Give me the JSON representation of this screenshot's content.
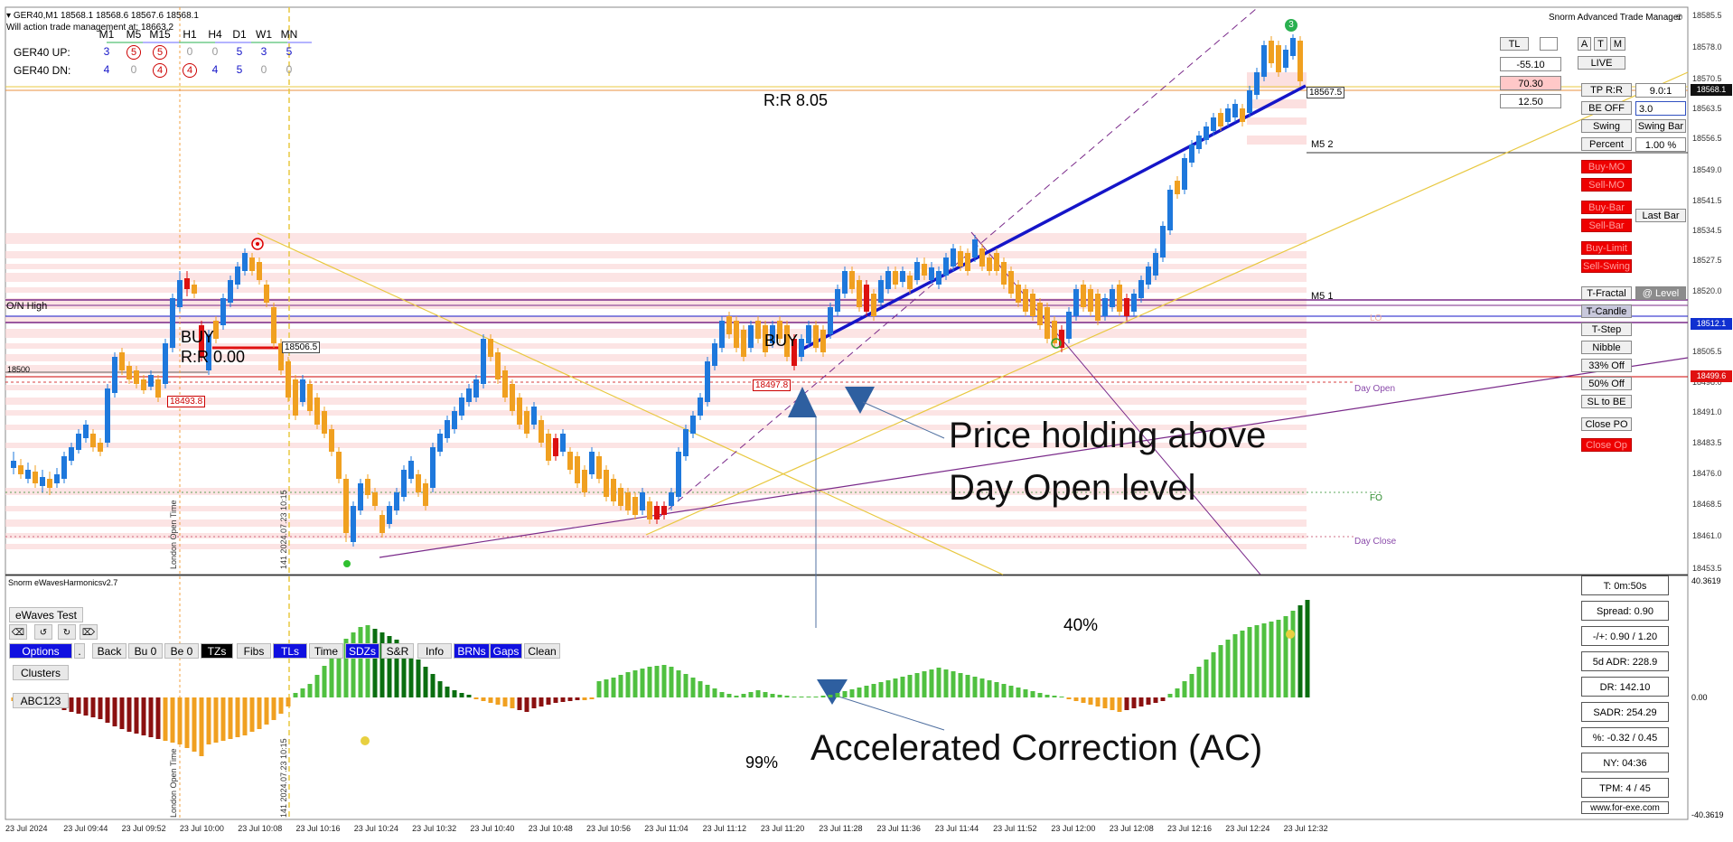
{
  "header": {
    "symbol_line": "GER40,M1  18568.1  18568.6  18567.6  18568.1",
    "note": "Will action trade management at: 18663.2"
  },
  "mtf": {
    "timeframes": [
      "M1",
      "M5",
      "M15",
      "H1",
      "H4",
      "D1",
      "W1",
      "MN"
    ],
    "up_label": "GER40 UP:",
    "dn_label": "GER40 DN:",
    "up_values": [
      "3",
      "5",
      "5",
      "0",
      "0",
      "5",
      "3",
      "5"
    ],
    "dn_values": [
      "4",
      "0",
      "4",
      "4",
      "4",
      "5",
      "0",
      "0"
    ],
    "up_circled": [
      false,
      true,
      true,
      false,
      false,
      false,
      false,
      false
    ],
    "dn_circled": [
      false,
      false,
      true,
      true,
      false,
      false,
      false,
      false
    ]
  },
  "trade_manager": {
    "title": "Snorm Advanced Trade Manager",
    "buttons": {
      "tl": "TL",
      "a": "A",
      "t": "T",
      "m": "M",
      "live": "LIVE",
      "tp_rr": "TP R:R",
      "tp_rr_value": "9.0:1",
      "be_off": "BE OFF",
      "be_value": "3.0",
      "swing": "Swing",
      "swing_bar": "Swing Bar",
      "percent": "Percent",
      "percent_value": "1.00 %",
      "buy_mo": "Buy-MO",
      "sell_mo": "Sell-MO",
      "buy_bar": "Buy-Bar",
      "sell_bar": "Sell-Bar",
      "last_bar": "Last Bar",
      "buy_limit": "Buy-Limit",
      "sell_swing": "Sell-Swing",
      "t_fractal": "T-Fractal",
      "at_level": "@ Level",
      "t_candle": "T-Candle",
      "t_step": "T-Step",
      "nibble": "Nibble",
      "off33": "33% Off",
      "off50": "50% Off",
      "sl_to_be": "SL to BE",
      "close_po": "Close PO",
      "close_op": "Close Op"
    },
    "values": {
      "v1": "-55.10",
      "v2": "70.30",
      "v3": "12.50"
    }
  },
  "chart": {
    "rr_top": "R:R 8.05",
    "buy_left": "BUY",
    "rr_left": "R:R 0.00",
    "buy_mid": "BUY",
    "level_506": "18506.5",
    "level_493": "18493.8",
    "level_497": "18497.8",
    "level_567": "18567.5",
    "on_high": "O/N High",
    "level_18500": "18500",
    "m5_2": "M5 2",
    "m5_1": "M5 1",
    "day_open": "Day Open",
    "fo": "FO",
    "day_close": "Day Close",
    "lo": "LO",
    "fractal_label": "3",
    "vline1_label": "London Open Time",
    "vline2_label": "141 2024.07.23 10:15"
  },
  "annotations": {
    "price_line1": "Price holding above",
    "price_line2": "Day Open level",
    "ac": "Accelerated  Correction (AC)",
    "pct40": "40%",
    "pct99": "99%"
  },
  "price_axis": {
    "labels": [
      "18585.5",
      "18578.0",
      "18570.5",
      "18563.5",
      "18556.5",
      "18549.0",
      "18541.5",
      "18534.5",
      "18527.5",
      "18520.0",
      "18512.5",
      "18505.5",
      "18498.0",
      "18491.0",
      "18483.5",
      "18476.0",
      "18468.5",
      "18461.0",
      "18453.5"
    ],
    "current": "18568.1",
    "blue_tag": "18512.1",
    "red_tag": "18499.6"
  },
  "oscillator": {
    "title": "Snorm eWavesHarmonicsv2.7",
    "ewaves_test": "eWaves Test",
    "options": "Options",
    "dot": ".",
    "back": "Back",
    "bu0": "Bu 0",
    "be0": "Be 0",
    "tzs": "TZs",
    "fibs": "Fibs",
    "tls": "TLs",
    "time": "Time",
    "sdzs": "SDZs",
    "sr": "S&R",
    "info": "Info",
    "brns": "BRNs",
    "gaps": "Gaps",
    "clean": "Clean",
    "clusters": "Clusters",
    "abc123": "ABC123",
    "axis_top": "40.3619",
    "axis_mid": "0.00",
    "axis_bottom": "-40.3619"
  },
  "stats": {
    "t": "T: 0m:50s",
    "spread": "Spread: 0.90",
    "pm": "-/+: 0.90 / 1.20",
    "adr": "5d ADR: 228.9",
    "dr": "DR: 142.10",
    "sadr": "SADR: 254.29",
    "pct": "%: -0.32 / 0.45",
    "ny": "NY: 04:36",
    "tpm": "TPM: 4 / 45",
    "url": "www.for-exe.com"
  },
  "time_axis": [
    "23 Jul 2024",
    "23 Jul 09:44",
    "23 Jul 09:52",
    "23 Jul 10:00",
    "23 Jul 10:08",
    "23 Jul 10:16",
    "23 Jul 10:24",
    "23 Jul 10:32",
    "23 Jul 10:40",
    "23 Jul 10:48",
    "23 Jul 10:56",
    "23 Jul 11:04",
    "23 Jul 11:12",
    "23 Jul 11:20",
    "23 Jul 11:28",
    "23 Jul 11:36",
    "23 Jul 11:44",
    "23 Jul 11:52",
    "23 Jul 12:00",
    "23 Jul 12:08",
    "23 Jul 12:16",
    "23 Jul 12:24",
    "23 Jul 12:32"
  ],
  "colors": {
    "bull": "#1e78dc",
    "bear": "#f0a020",
    "red": "#dc1010",
    "osc_green_light": "#50c040",
    "osc_green_dark": "#0a6e10",
    "osc_orange": "#f0a020",
    "osc_maroon": "#8b1010",
    "trend_blue": "#1515c8",
    "purple": "#7a2a8a",
    "yellow": "#e8c840"
  }
}
